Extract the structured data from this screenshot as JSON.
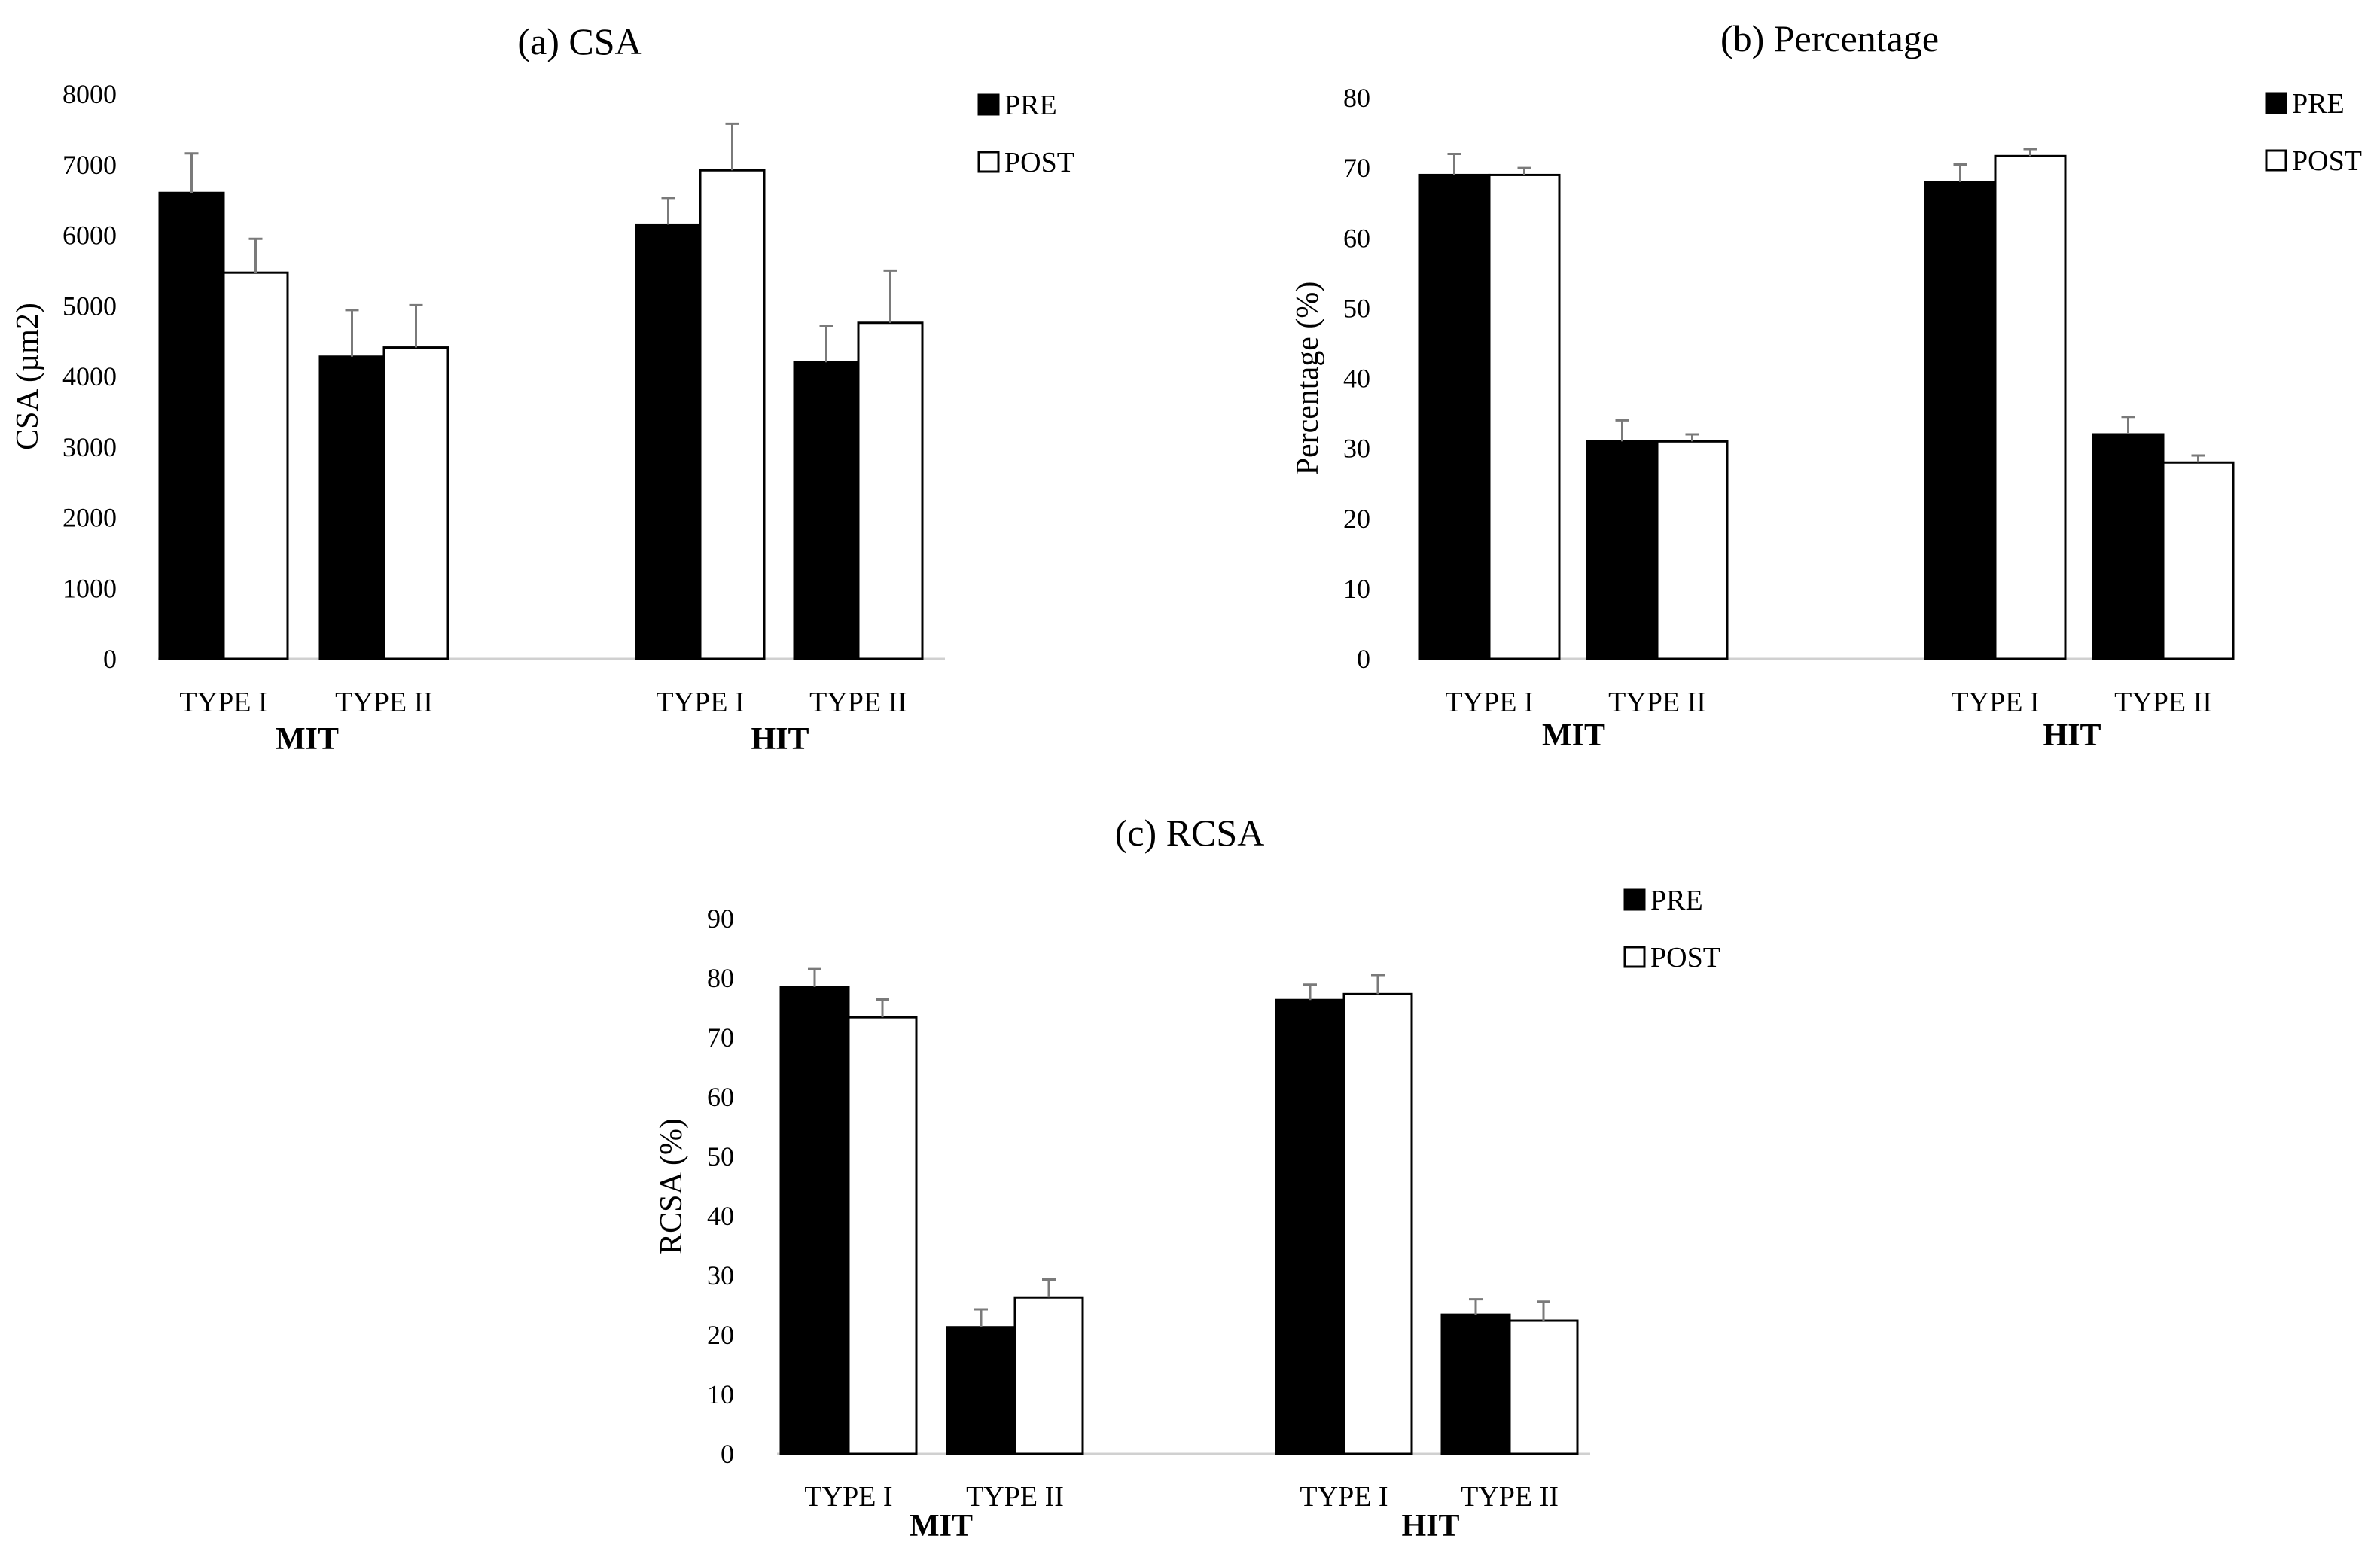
{
  "chart_data": [
    {
      "id": "csa",
      "type": "bar",
      "title": "(a) CSA",
      "xlabel": "",
      "ylabel": "CSA (µm2)",
      "ylim": [
        0,
        8000
      ],
      "yticks": [
        0,
        1000,
        2000,
        3000,
        4000,
        5000,
        6000,
        7000,
        8000
      ],
      "groups": [
        {
          "name": "MIT",
          "categories": [
            "TYPE I",
            "TYPE II"
          ]
        },
        {
          "name": "HIT",
          "categories": [
            "TYPE I",
            "TYPE II"
          ]
        }
      ],
      "series": [
        {
          "name": "PRE",
          "color": "#000000",
          "values": [
            6600,
            4280,
            6150,
            4200
          ],
          "errors": [
            560,
            660,
            380,
            520
          ]
        },
        {
          "name": "POST",
          "color": "#ffffff",
          "values": [
            5470,
            4410,
            6920,
            4760
          ],
          "errors": [
            480,
            600,
            660,
            740
          ]
        }
      ],
      "legend": "top-right"
    },
    {
      "id": "percentage",
      "type": "bar",
      "title": "(b) Percentage",
      "xlabel": "",
      "ylabel": "Percentage (%)",
      "ylim": [
        0,
        80
      ],
      "yticks": [
        0,
        10,
        20,
        30,
        40,
        50,
        60,
        70,
        80
      ],
      "groups": [
        {
          "name": "MIT",
          "categories": [
            "TYPE I",
            "TYPE II"
          ]
        },
        {
          "name": "HIT",
          "categories": [
            "TYPE I",
            "TYPE II"
          ]
        }
      ],
      "series": [
        {
          "name": "PRE",
          "color": "#000000",
          "values": [
            69,
            31,
            68,
            32
          ],
          "errors": [
            3,
            3,
            2.5,
            2.5
          ]
        },
        {
          "name": "POST",
          "color": "#ffffff",
          "values": [
            69,
            31,
            71.7,
            28
          ],
          "errors": [
            1,
            1,
            1,
            1
          ]
        }
      ],
      "legend": "top-right"
    },
    {
      "id": "rcsa",
      "type": "bar",
      "title": "(c) RCSA",
      "xlabel": "",
      "ylabel": "RCSA (%)",
      "ylim": [
        0,
        90
      ],
      "yticks": [
        0,
        10,
        20,
        30,
        40,
        50,
        60,
        70,
        80,
        90
      ],
      "groups": [
        {
          "name": "MIT",
          "categories": [
            "TYPE I",
            "TYPE II"
          ]
        },
        {
          "name": "HIT",
          "categories": [
            "TYPE I",
            "TYPE II"
          ]
        }
      ],
      "series": [
        {
          "name": "PRE",
          "color": "#000000",
          "values": [
            78.5,
            21.3,
            76.3,
            23.4
          ],
          "errors": [
            3,
            3,
            2.6,
            2.6
          ]
        },
        {
          "name": "POST",
          "color": "#ffffff",
          "values": [
            73.4,
            26.3,
            77.3,
            22.4
          ],
          "errors": [
            3,
            3,
            3.2,
            3.2
          ]
        }
      ],
      "legend": "top-right"
    }
  ]
}
